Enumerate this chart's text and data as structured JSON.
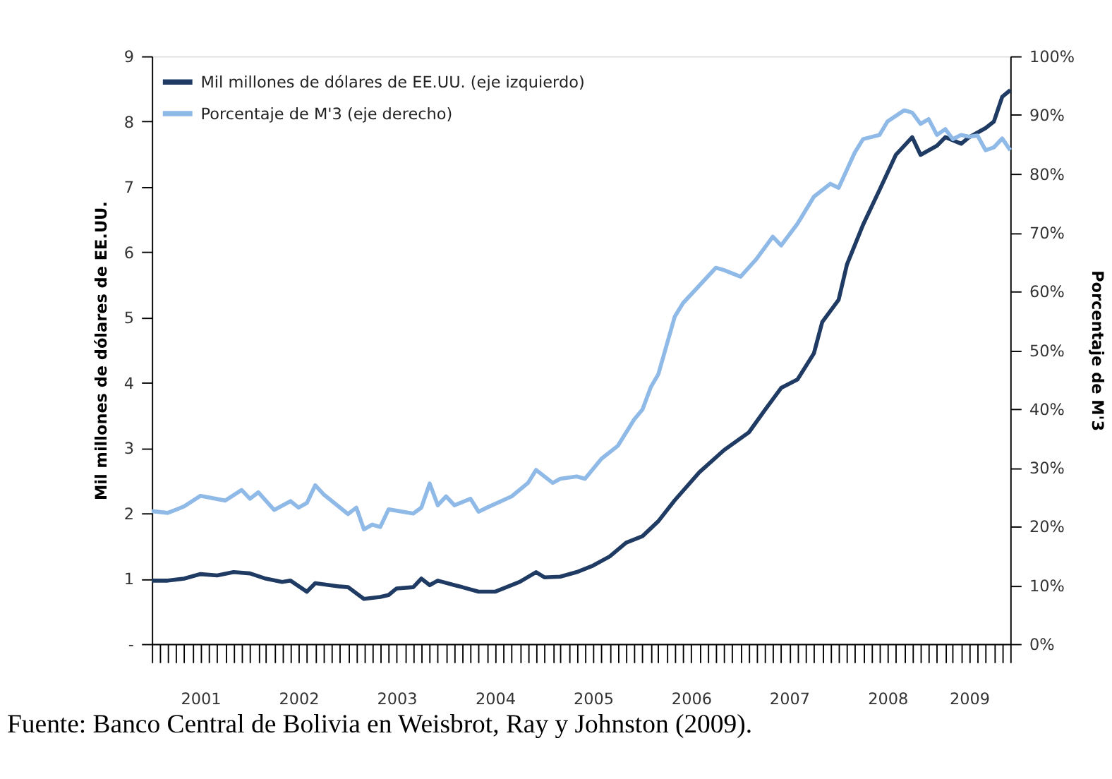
{
  "chart_data": {
    "type": "line",
    "legend": "top left",
    "grid": false,
    "marker": "none",
    "line_style": "solid",
    "ylabel": "Mil millones de dólares de EE.UU.",
    "y2label": "Porcentaje de M'3",
    "annotations": [
      "Fuente: Banco Central de Bolivia en Weisbrot, Ray y Johnston (2009)."
    ],
    "xlim": [
      "2001-01",
      "2009-10"
    ],
    "xticks": [
      {
        "value": "2001-01",
        "label": null
      },
      {
        "value": "2001-02",
        "label": null
      },
      {
        "value": "2001-03",
        "label": null
      },
      {
        "value": "2001-04",
        "label": null
      },
      {
        "value": "2001-05",
        "label": null
      },
      {
        "value": "2001-06",
        "label": null
      },
      {
        "value": "2001-07",
        "label": "2001"
      },
      {
        "value": "2001-08",
        "label": null
      },
      {
        "value": "2001-09",
        "label": null
      },
      {
        "value": "2001-10",
        "label": null
      },
      {
        "value": "2001-11",
        "label": null
      },
      {
        "value": "2001-12",
        "label": null
      },
      {
        "value": "2002-01",
        "label": null
      },
      {
        "value": "2002-02",
        "label": null
      },
      {
        "value": "2002-03",
        "label": null
      },
      {
        "value": "2002-04",
        "label": null
      },
      {
        "value": "2002-05",
        "label": null
      },
      {
        "value": "2002-06",
        "label": null
      },
      {
        "value": "2002-07",
        "label": "2002"
      },
      {
        "value": "2002-08",
        "label": null
      },
      {
        "value": "2002-09",
        "label": null
      },
      {
        "value": "2002-10",
        "label": null
      },
      {
        "value": "2002-11",
        "label": null
      },
      {
        "value": "2002-12",
        "label": null
      },
      {
        "value": "2003-01",
        "label": null
      },
      {
        "value": "2003-02",
        "label": null
      },
      {
        "value": "2003-03",
        "label": null
      },
      {
        "value": "2003-04",
        "label": null
      },
      {
        "value": "2003-05",
        "label": null
      },
      {
        "value": "2003-06",
        "label": null
      },
      {
        "value": "2003-07",
        "label": "2003"
      },
      {
        "value": "2003-08",
        "label": null
      },
      {
        "value": "2003-09",
        "label": null
      },
      {
        "value": "2003-10",
        "label": null
      },
      {
        "value": "2003-11",
        "label": null
      },
      {
        "value": "2003-12",
        "label": null
      },
      {
        "value": "2004-01",
        "label": null
      },
      {
        "value": "2004-02",
        "label": null
      },
      {
        "value": "2004-03",
        "label": null
      },
      {
        "value": "2004-04",
        "label": null
      },
      {
        "value": "2004-05",
        "label": null
      },
      {
        "value": "2004-06",
        "label": null
      },
      {
        "value": "2004-07",
        "label": "2004"
      },
      {
        "value": "2004-08",
        "label": null
      },
      {
        "value": "2004-09",
        "label": null
      },
      {
        "value": "2004-10",
        "label": null
      },
      {
        "value": "2004-11",
        "label": null
      },
      {
        "value": "2004-12",
        "label": null
      },
      {
        "value": "2005-01",
        "label": null
      },
      {
        "value": "2005-02",
        "label": null
      },
      {
        "value": "2005-03",
        "label": null
      },
      {
        "value": "2005-04",
        "label": null
      },
      {
        "value": "2005-05",
        "label": null
      },
      {
        "value": "2005-06",
        "label": null
      },
      {
        "value": "2005-07",
        "label": "2005"
      },
      {
        "value": "2005-08",
        "label": null
      },
      {
        "value": "2005-09",
        "label": null
      },
      {
        "value": "2005-10",
        "label": null
      },
      {
        "value": "2005-11",
        "label": null
      },
      {
        "value": "2005-12",
        "label": null
      },
      {
        "value": "2006-01",
        "label": null
      },
      {
        "value": "2006-02",
        "label": null
      },
      {
        "value": "2006-03",
        "label": null
      },
      {
        "value": "2006-04",
        "label": null
      },
      {
        "value": "2006-05",
        "label": null
      },
      {
        "value": "2006-06",
        "label": null
      },
      {
        "value": "2006-07",
        "label": "2006"
      },
      {
        "value": "2006-08",
        "label": null
      },
      {
        "value": "2006-09",
        "label": null
      },
      {
        "value": "2006-10",
        "label": null
      },
      {
        "value": "2006-11",
        "label": null
      },
      {
        "value": "2006-12",
        "label": null
      },
      {
        "value": "2007-01",
        "label": null
      },
      {
        "value": "2007-02",
        "label": null
      },
      {
        "value": "2007-03",
        "label": null
      },
      {
        "value": "2007-04",
        "label": null
      },
      {
        "value": "2007-05",
        "label": null
      },
      {
        "value": "2007-06",
        "label": null
      },
      {
        "value": "2007-07",
        "label": "2007"
      },
      {
        "value": "2007-08",
        "label": null
      },
      {
        "value": "2007-09",
        "label": null
      },
      {
        "value": "2007-10",
        "label": null
      },
      {
        "value": "2007-11",
        "label": null
      },
      {
        "value": "2007-12",
        "label": null
      },
      {
        "value": "2008-01",
        "label": null
      },
      {
        "value": "2008-02",
        "label": null
      },
      {
        "value": "2008-03",
        "label": null
      },
      {
        "value": "2008-04",
        "label": null
      },
      {
        "value": "2008-05",
        "label": null
      },
      {
        "value": "2008-06",
        "label": null
      },
      {
        "value": "2008-07",
        "label": "2008"
      },
      {
        "value": "2008-08",
        "label": null
      },
      {
        "value": "2008-09",
        "label": null
      },
      {
        "value": "2008-10",
        "label": null
      },
      {
        "value": "2008-11",
        "label": null
      },
      {
        "value": "2008-12",
        "label": null
      },
      {
        "value": "2009-01",
        "label": null
      },
      {
        "value": "2009-02",
        "label": null
      },
      {
        "value": "2009-03",
        "label": null
      },
      {
        "value": "2009-04",
        "label": null
      },
      {
        "value": "2009-05",
        "label": "2009"
      },
      {
        "value": "2009-06",
        "label": null
      },
      {
        "value": "2009-07",
        "label": null
      },
      {
        "value": "2009-08",
        "label": null
      },
      {
        "value": "2009-09",
        "label": null
      },
      {
        "value": "2009-10",
        "label": null
      }
    ],
    "ylim": [
      0,
      9
    ],
    "yticks": [
      {
        "value": 0,
        "label": "-"
      },
      {
        "value": 1,
        "label": "1"
      },
      {
        "value": 2,
        "label": "2"
      },
      {
        "value": 3,
        "label": "3"
      },
      {
        "value": 4,
        "label": "4"
      },
      {
        "value": 5,
        "label": "5"
      },
      {
        "value": 6,
        "label": "6"
      },
      {
        "value": 7,
        "label": "7"
      },
      {
        "value": 8,
        "label": "8"
      },
      {
        "value": 9,
        "label": "9"
      }
    ],
    "y2lim": [
      0,
      100
    ],
    "y2ticks": [
      {
        "value": 0,
        "label": "0%"
      },
      {
        "value": 10,
        "label": "10%"
      },
      {
        "value": 20,
        "label": "20%"
      },
      {
        "value": 30,
        "label": "30%"
      },
      {
        "value": 40,
        "label": "40%"
      },
      {
        "value": 50,
        "label": "50%"
      },
      {
        "value": 60,
        "label": "60%"
      },
      {
        "value": 70,
        "label": "70%"
      },
      {
        "value": 80,
        "label": "80%"
      },
      {
        "value": 90,
        "label": "90%"
      },
      {
        "value": 100,
        "label": "100%"
      }
    ],
    "series": [
      {
        "name": "Mil millones de dólares de EE.UU. (eje izquierdo)",
        "color": "#1f3b63",
        "axis": "y",
        "x": [
          "2001-01",
          "2001-03",
          "2001-05",
          "2001-07",
          "2001-09",
          "2001-11",
          "2002-01",
          "2002-03",
          "2002-05",
          "2002-06",
          "2002-08",
          "2002-09",
          "2002-12",
          "2003-01",
          "2003-03",
          "2003-05",
          "2003-06",
          "2003-07",
          "2003-09",
          "2003-10",
          "2003-11",
          "2003-12",
          "2004-02",
          "2004-03",
          "2004-05",
          "2004-07",
          "2004-10",
          "2004-12",
          "2005-01",
          "2005-03",
          "2005-05",
          "2005-07",
          "2005-09",
          "2005-11",
          "2006-01",
          "2006-03",
          "2006-05",
          "2006-08",
          "2006-11",
          "2007-02",
          "2007-04",
          "2007-06",
          "2007-08",
          "2007-10",
          "2007-11",
          "2008-01",
          "2008-02",
          "2008-04",
          "2008-06",
          "2008-08",
          "2008-10",
          "2008-11",
          "2009-01",
          "2009-02",
          "2009-04",
          "2009-05",
          "2009-07",
          "2009-08",
          "2009-09",
          "2009-10"
        ],
        "values": [
          0.97,
          0.97,
          1.0,
          1.07,
          1.05,
          1.1,
          1.08,
          1.0,
          0.95,
          0.97,
          0.8,
          0.93,
          0.88,
          0.87,
          0.69,
          0.72,
          0.75,
          0.85,
          0.87,
          1.0,
          0.9,
          0.97,
          0.9,
          0.87,
          0.8,
          0.8,
          0.95,
          1.1,
          1.02,
          1.03,
          1.1,
          1.2,
          1.34,
          1.55,
          1.65,
          1.88,
          2.2,
          2.63,
          2.97,
          3.24,
          3.58,
          3.92,
          4.05,
          4.45,
          4.93,
          5.27,
          5.81,
          6.42,
          6.95,
          7.49,
          7.76,
          7.49,
          7.63,
          7.76,
          7.66,
          7.76,
          7.9,
          8.0,
          8.38,
          8.48
        ]
      },
      {
        "name": "Porcentaje de M'3 (eje derecho)",
        "color": "#8fb9e6",
        "axis": "y2",
        "x": [
          "2001-01",
          "2001-03",
          "2001-05",
          "2001-07",
          "2001-10",
          "2001-12",
          "2002-01",
          "2002-02",
          "2002-04",
          "2002-06",
          "2002-07",
          "2002-08",
          "2002-09",
          "2002-10",
          "2003-01",
          "2003-02",
          "2003-03",
          "2003-04",
          "2003-05",
          "2003-06",
          "2003-09",
          "2003-10",
          "2003-11",
          "2003-12",
          "2004-01",
          "2004-02",
          "2004-04",
          "2004-05",
          "2004-06",
          "2004-09",
          "2004-11",
          "2004-12",
          "2005-02",
          "2005-03",
          "2005-05",
          "2005-06",
          "2005-08",
          "2005-10",
          "2005-12",
          "2006-01",
          "2006-02",
          "2006-03",
          "2006-05",
          "2006-06",
          "2006-08",
          "2006-10",
          "2006-11",
          "2007-01",
          "2007-03",
          "2007-05",
          "2007-06",
          "2007-08",
          "2007-10",
          "2007-12",
          "2008-01",
          "2008-03",
          "2008-04",
          "2008-06",
          "2008-07",
          "2008-09",
          "2008-10",
          "2008-11",
          "2008-12",
          "2009-01",
          "2009-02",
          "2009-03",
          "2009-04",
          "2009-05",
          "2009-06",
          "2009-07",
          "2009-08",
          "2009-09",
          "2009-10"
        ],
        "values": [
          22.6,
          22.3,
          23.4,
          25.2,
          24.4,
          26.2,
          24.7,
          25.8,
          22.8,
          24.3,
          23.2,
          24,
          27,
          25.5,
          22.1,
          23.2,
          19.5,
          20.3,
          19.9,
          22.9,
          22.2,
          23.2,
          27.3,
          23.6,
          25.1,
          23.6,
          24.7,
          22.5,
          23.2,
          25.1,
          27.4,
          29.6,
          27.4,
          28.1,
          28.5,
          28.1,
          31.5,
          33.7,
          38.2,
          39.9,
          43.7,
          45.9,
          55.7,
          58,
          61,
          64,
          63.6,
          62.5,
          65.5,
          69.3,
          67.8,
          71.5,
          76.1,
          78.3,
          77.6,
          83.6,
          85.9,
          86.6,
          88.9,
          90.8,
          90.4,
          88.5,
          89.3,
          86.6,
          87.6,
          85.9,
          86.6,
          86.3,
          86.5,
          84,
          84.5,
          86,
          84
        ]
      }
    ]
  }
}
